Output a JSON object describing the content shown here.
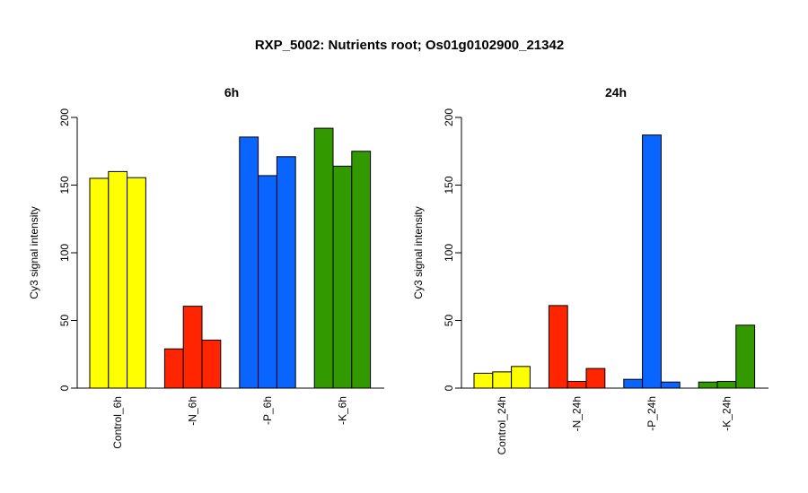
{
  "figure": {
    "title": "RXP_5002: Nutrients root; Os01g0102900_21342"
  },
  "chart_data": [
    {
      "type": "bar",
      "title": "6h",
      "xlabel": "",
      "ylabel": "Cy3 signal intensity",
      "ylim": [
        0,
        200
      ],
      "yticks": [
        0,
        50,
        100,
        150,
        200
      ],
      "grid": false,
      "groups": [
        {
          "label": "Control_6h",
          "color": "#FFFF00",
          "values": [
            155,
            160,
            155.5
          ]
        },
        {
          "label": "-N_6h",
          "color": "#FF2500",
          "values": [
            29,
            60.5,
            35.5
          ]
        },
        {
          "label": "-P_6h",
          "color": "#0A64FF",
          "values": [
            185.5,
            157,
            171
          ]
        },
        {
          "label": "-K_6h",
          "color": "#339900",
          "values": [
            192,
            164,
            175
          ]
        }
      ]
    },
    {
      "type": "bar",
      "title": "24h",
      "xlabel": "",
      "ylabel": "Cy3 signal intensity",
      "ylim": [
        0,
        200
      ],
      "yticks": [
        0,
        50,
        100,
        150,
        200
      ],
      "grid": false,
      "groups": [
        {
          "label": "Control_24h",
          "color": "#FFFF00",
          "values": [
            11,
            12,
            16
          ]
        },
        {
          "label": "-N_24h",
          "color": "#FF2500",
          "values": [
            61,
            5,
            14.5
          ]
        },
        {
          "label": "-P_24h",
          "color": "#0A64FF",
          "values": [
            6.5,
            187,
            4.5
          ]
        },
        {
          "label": "-K_24h",
          "color": "#339900",
          "values": [
            4.5,
            5,
            46.5
          ]
        }
      ]
    }
  ]
}
